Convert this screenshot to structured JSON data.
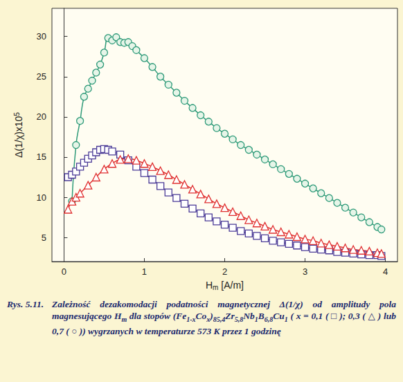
{
  "chart_data": {
    "type": "line",
    "xlabel": [
      {
        "text": "H"
      },
      {
        "text": "m",
        "sub": true
      },
      {
        "text": " [A/m]"
      }
    ],
    "ylabel": [
      {
        "text": "Δ(1/χ)x10"
      },
      {
        "text": "5",
        "sup": true
      }
    ],
    "xlim": [
      -0.15,
      4.15
    ],
    "xticks": [
      0,
      1,
      2,
      3,
      4
    ],
    "ylim": [
      2,
      33.5
    ],
    "yticks": [
      5,
      10,
      15,
      20,
      25,
      30
    ],
    "grid": false,
    "series": [
      {
        "color": "#2e9a78",
        "marker": "circle",
        "x": [
          0.1,
          0.15,
          0.2,
          0.25,
          0.3,
          0.35,
          0.4,
          0.45,
          0.5,
          0.55,
          0.6,
          0.65,
          0.7,
          0.75,
          0.8,
          0.85,
          0.9,
          1.0,
          1.1,
          1.2,
          1.3,
          1.4,
          1.5,
          1.6,
          1.7,
          1.8,
          1.9,
          2.0,
          2.1,
          2.2,
          2.3,
          2.4,
          2.5,
          2.6,
          2.7,
          2.8,
          2.9,
          3.0,
          3.1,
          3.2,
          3.3,
          3.4,
          3.5,
          3.6,
          3.7,
          3.8,
          3.9,
          3.95
        ],
        "values": [
          9.5,
          16.5,
          19.5,
          22.5,
          23.5,
          24.5,
          25.5,
          26.5,
          28,
          29.8,
          29.5,
          29.9,
          29.3,
          29.2,
          29.3,
          28.8,
          28.3,
          27.3,
          26.2,
          25.0,
          24.0,
          23.0,
          22.0,
          21.1,
          20.2,
          19.4,
          18.6,
          17.9,
          17.2,
          16.5,
          15.9,
          15.3,
          14.7,
          14.1,
          13.5,
          12.9,
          12.3,
          11.7,
          11.1,
          10.5,
          9.9,
          9.3,
          8.7,
          8.1,
          7.5,
          6.9,
          6.3,
          6.0
        ]
      },
      {
        "color": "#4b3b96",
        "marker": "square",
        "x": [
          0.05,
          0.1,
          0.15,
          0.2,
          0.25,
          0.3,
          0.35,
          0.4,
          0.45,
          0.5,
          0.55,
          0.6,
          0.7,
          0.8,
          0.9,
          1.0,
          1.1,
          1.2,
          1.3,
          1.4,
          1.5,
          1.6,
          1.7,
          1.8,
          1.9,
          2.0,
          2.1,
          2.2,
          2.3,
          2.4,
          2.5,
          2.6,
          2.7,
          2.8,
          2.9,
          3.0,
          3.1,
          3.2,
          3.3,
          3.4,
          3.5,
          3.6,
          3.7,
          3.8,
          3.9,
          3.95
        ],
        "values": [
          12.5,
          12.8,
          13.2,
          13.8,
          14.3,
          14.8,
          15.2,
          15.6,
          15.9,
          16.0,
          15.9,
          15.7,
          15.3,
          14.6,
          13.8,
          13.0,
          12.2,
          11.4,
          10.6,
          9.9,
          9.2,
          8.6,
          8.0,
          7.5,
          7.0,
          6.6,
          6.2,
          5.8,
          5.5,
          5.2,
          4.9,
          4.6,
          4.4,
          4.2,
          4.0,
          3.8,
          3.6,
          3.5,
          3.4,
          3.2,
          3.1,
          3.0,
          2.9,
          2.8,
          2.8,
          2.7
        ]
      },
      {
        "color": "#e03030",
        "marker": "triangle",
        "x": [
          0.05,
          0.1,
          0.15,
          0.2,
          0.3,
          0.4,
          0.5,
          0.6,
          0.7,
          0.8,
          0.9,
          1.0,
          1.1,
          1.2,
          1.3,
          1.4,
          1.5,
          1.6,
          1.7,
          1.8,
          1.9,
          2.0,
          2.1,
          2.2,
          2.3,
          2.4,
          2.5,
          2.6,
          2.7,
          2.8,
          2.9,
          3.0,
          3.1,
          3.2,
          3.3,
          3.4,
          3.5,
          3.6,
          3.7,
          3.8,
          3.9,
          3.95
        ],
        "values": [
          8.5,
          9.5,
          10.0,
          10.5,
          11.5,
          12.5,
          13.5,
          14.2,
          14.7,
          14.8,
          14.6,
          14.2,
          13.8,
          13.3,
          12.8,
          12.2,
          11.6,
          11.0,
          10.4,
          9.8,
          9.2,
          8.7,
          8.2,
          7.7,
          7.2,
          6.8,
          6.4,
          6.0,
          5.7,
          5.4,
          5.1,
          4.8,
          4.6,
          4.3,
          4.1,
          3.9,
          3.7,
          3.5,
          3.4,
          3.3,
          3.1,
          3.0
        ]
      }
    ]
  },
  "caption": {
    "label": "Rys. 5.11.",
    "text": [
      {
        "text": "Zależność dezakomodacji podatności magnetycznej Δ(1/χ) od amplitudy pola magnesującego H"
      },
      {
        "text": "m",
        "sub": true
      },
      {
        "text": " dla stopów (Fe"
      },
      {
        "text": "1-x",
        "sub": true
      },
      {
        "text": "Co"
      },
      {
        "text": "x",
        "sub": true
      },
      {
        "text": ")"
      },
      {
        "text": "85,4",
        "sub": true
      },
      {
        "text": "Zr"
      },
      {
        "text": "5,8",
        "sub": true
      },
      {
        "text": "Nb"
      },
      {
        "text": "1",
        "sub": true
      },
      {
        "text": "B"
      },
      {
        "text": "6,8",
        "sub": true
      },
      {
        "text": "Cu"
      },
      {
        "text": "1",
        "sub": true
      },
      {
        "text": " ( x = 0,1 ( □ ); 0,3 ( △ ) lub 0,7 ( ○ )) wygrzanych w temperaturze 573 K przez 1 godzinę"
      }
    ]
  }
}
